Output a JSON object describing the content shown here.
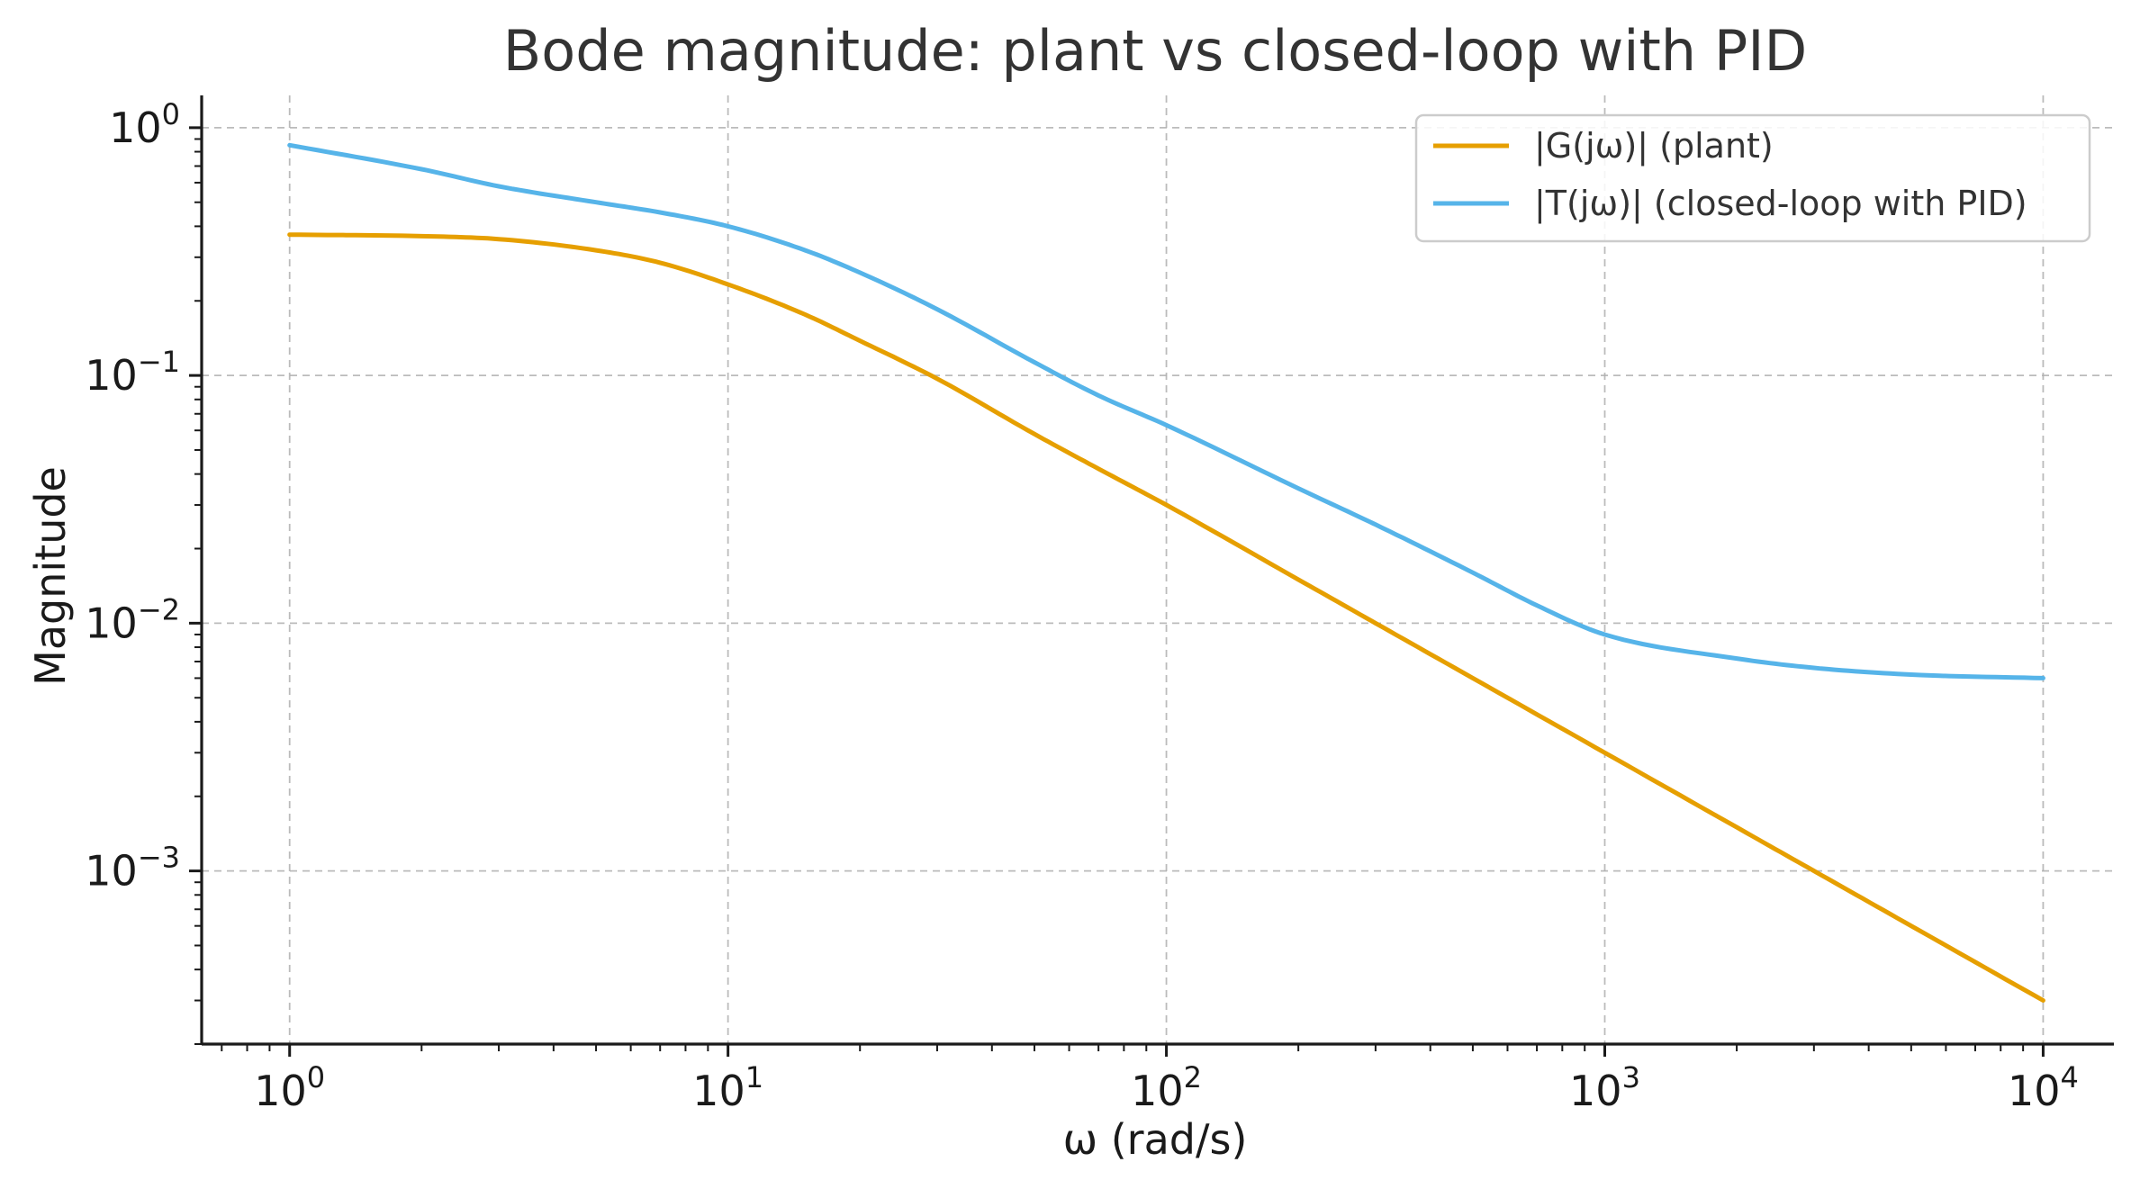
{
  "chart_data": {
    "type": "line",
    "title": "Bode magnitude: plant vs closed-loop with PID",
    "xlabel": "ω (rad/s)",
    "ylabel": "Magnitude",
    "xscale": "log",
    "yscale": "log",
    "xlim": [
      0.63,
      14500
    ],
    "ylim": [
      0.0002,
      1.35
    ],
    "x_ticks": [
      {
        "value": 1,
        "base": "10",
        "exp": "0"
      },
      {
        "value": 10,
        "base": "10",
        "exp": "1"
      },
      {
        "value": 100,
        "base": "10",
        "exp": "2"
      },
      {
        "value": 1000,
        "base": "10",
        "exp": "3"
      },
      {
        "value": 10000,
        "base": "10",
        "exp": "4"
      }
    ],
    "y_ticks": [
      {
        "value": 1,
        "base": "10",
        "exp": "0"
      },
      {
        "value": 0.1,
        "base": "10",
        "exp": "−1"
      },
      {
        "value": 0.01,
        "base": "10",
        "exp": "−2"
      },
      {
        "value": 0.001,
        "base": "10",
        "exp": "−3"
      }
    ],
    "grid": true,
    "legend_position": "top-right",
    "series": [
      {
        "name": "|G(jω)| (plant)",
        "color": "#E69F00",
        "x": [
          1,
          2,
          3,
          5,
          7,
          10,
          15,
          20,
          30,
          50,
          70,
          100,
          200,
          300,
          500,
          1000,
          2000,
          3000,
          5000,
          10000
        ],
        "y": [
          0.37,
          0.365,
          0.355,
          0.32,
          0.285,
          0.233,
          0.176,
          0.138,
          0.097,
          0.058,
          0.042,
          0.03,
          0.015,
          0.01,
          0.006,
          0.003,
          0.0015,
          0.001,
          0.0006,
          0.0003
        ]
      },
      {
        "name": "|T(jω)| (closed-loop with PID)",
        "color": "#56B4E9",
        "x": [
          1,
          2,
          3,
          5,
          7,
          10,
          15,
          20,
          30,
          50,
          70,
          100,
          200,
          300,
          500,
          700,
          1000,
          2000,
          3000,
          5000,
          10000
        ],
        "y": [
          0.85,
          0.68,
          0.58,
          0.5,
          0.455,
          0.4,
          0.32,
          0.26,
          0.185,
          0.113,
          0.083,
          0.063,
          0.035,
          0.025,
          0.016,
          0.0118,
          0.009,
          0.0072,
          0.0066,
          0.0062,
          0.006
        ]
      }
    ]
  }
}
